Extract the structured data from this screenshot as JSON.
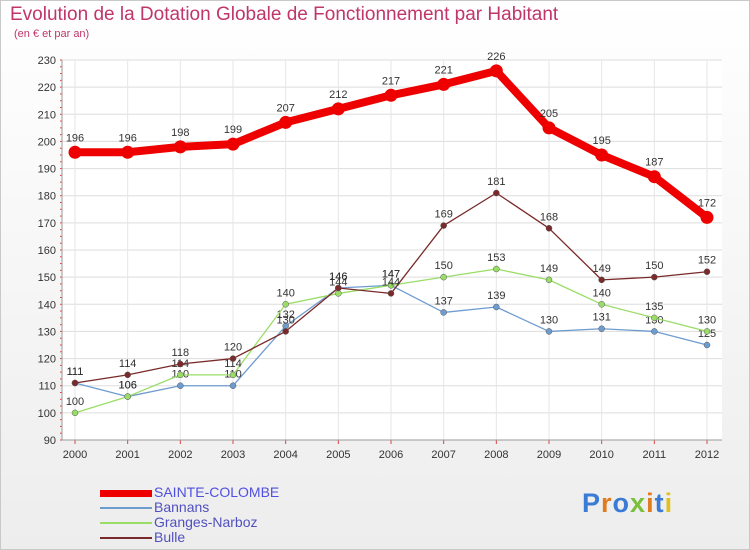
{
  "header": {
    "title": "Evolution de la Dotation Globale de Fonctionnement par Habitant",
    "subtitle": "(en € et par an)"
  },
  "brand": {
    "text": "Proxiti"
  },
  "chart_data": {
    "type": "line",
    "title": "Evolution de la Dotation Globale de Fonctionnement par Habitant",
    "subtitle": "(en € et par an)",
    "xlabel": "",
    "ylabel": "",
    "ylim": [
      90,
      230
    ],
    "yticks": [
      90,
      100,
      110,
      120,
      130,
      140,
      150,
      160,
      170,
      180,
      190,
      200,
      210,
      220,
      230
    ],
    "grid": true,
    "legend_position": "bottom-left",
    "x": [
      "2000",
      "2001",
      "2002",
      "2003",
      "2004",
      "2005",
      "2006",
      "2007",
      "2008",
      "2009",
      "2010",
      "2011",
      "2012"
    ],
    "series": [
      {
        "name": "SAINTE-COLOMBE",
        "color": "#ee0000",
        "values": [
          196,
          196,
          198,
          199,
          207,
          212,
          217,
          221,
          226,
          205,
          195,
          187,
          172
        ]
      },
      {
        "name": "Bannans",
        "color": "#6f9ccf",
        "values": [
          111,
          106,
          110,
          110,
          132,
          146,
          147,
          137,
          139,
          130,
          131,
          130,
          125
        ]
      },
      {
        "name": "Granges-Narboz",
        "color": "#99dd66",
        "values": [
          100,
          106,
          114,
          114,
          140,
          144,
          147,
          150,
          153,
          149,
          140,
          135,
          130
        ]
      },
      {
        "name": "Bulle",
        "color": "#7a2a2a",
        "values": [
          111,
          114,
          118,
          120,
          130,
          146,
          144,
          169,
          181,
          168,
          149,
          150,
          152
        ]
      }
    ]
  }
}
